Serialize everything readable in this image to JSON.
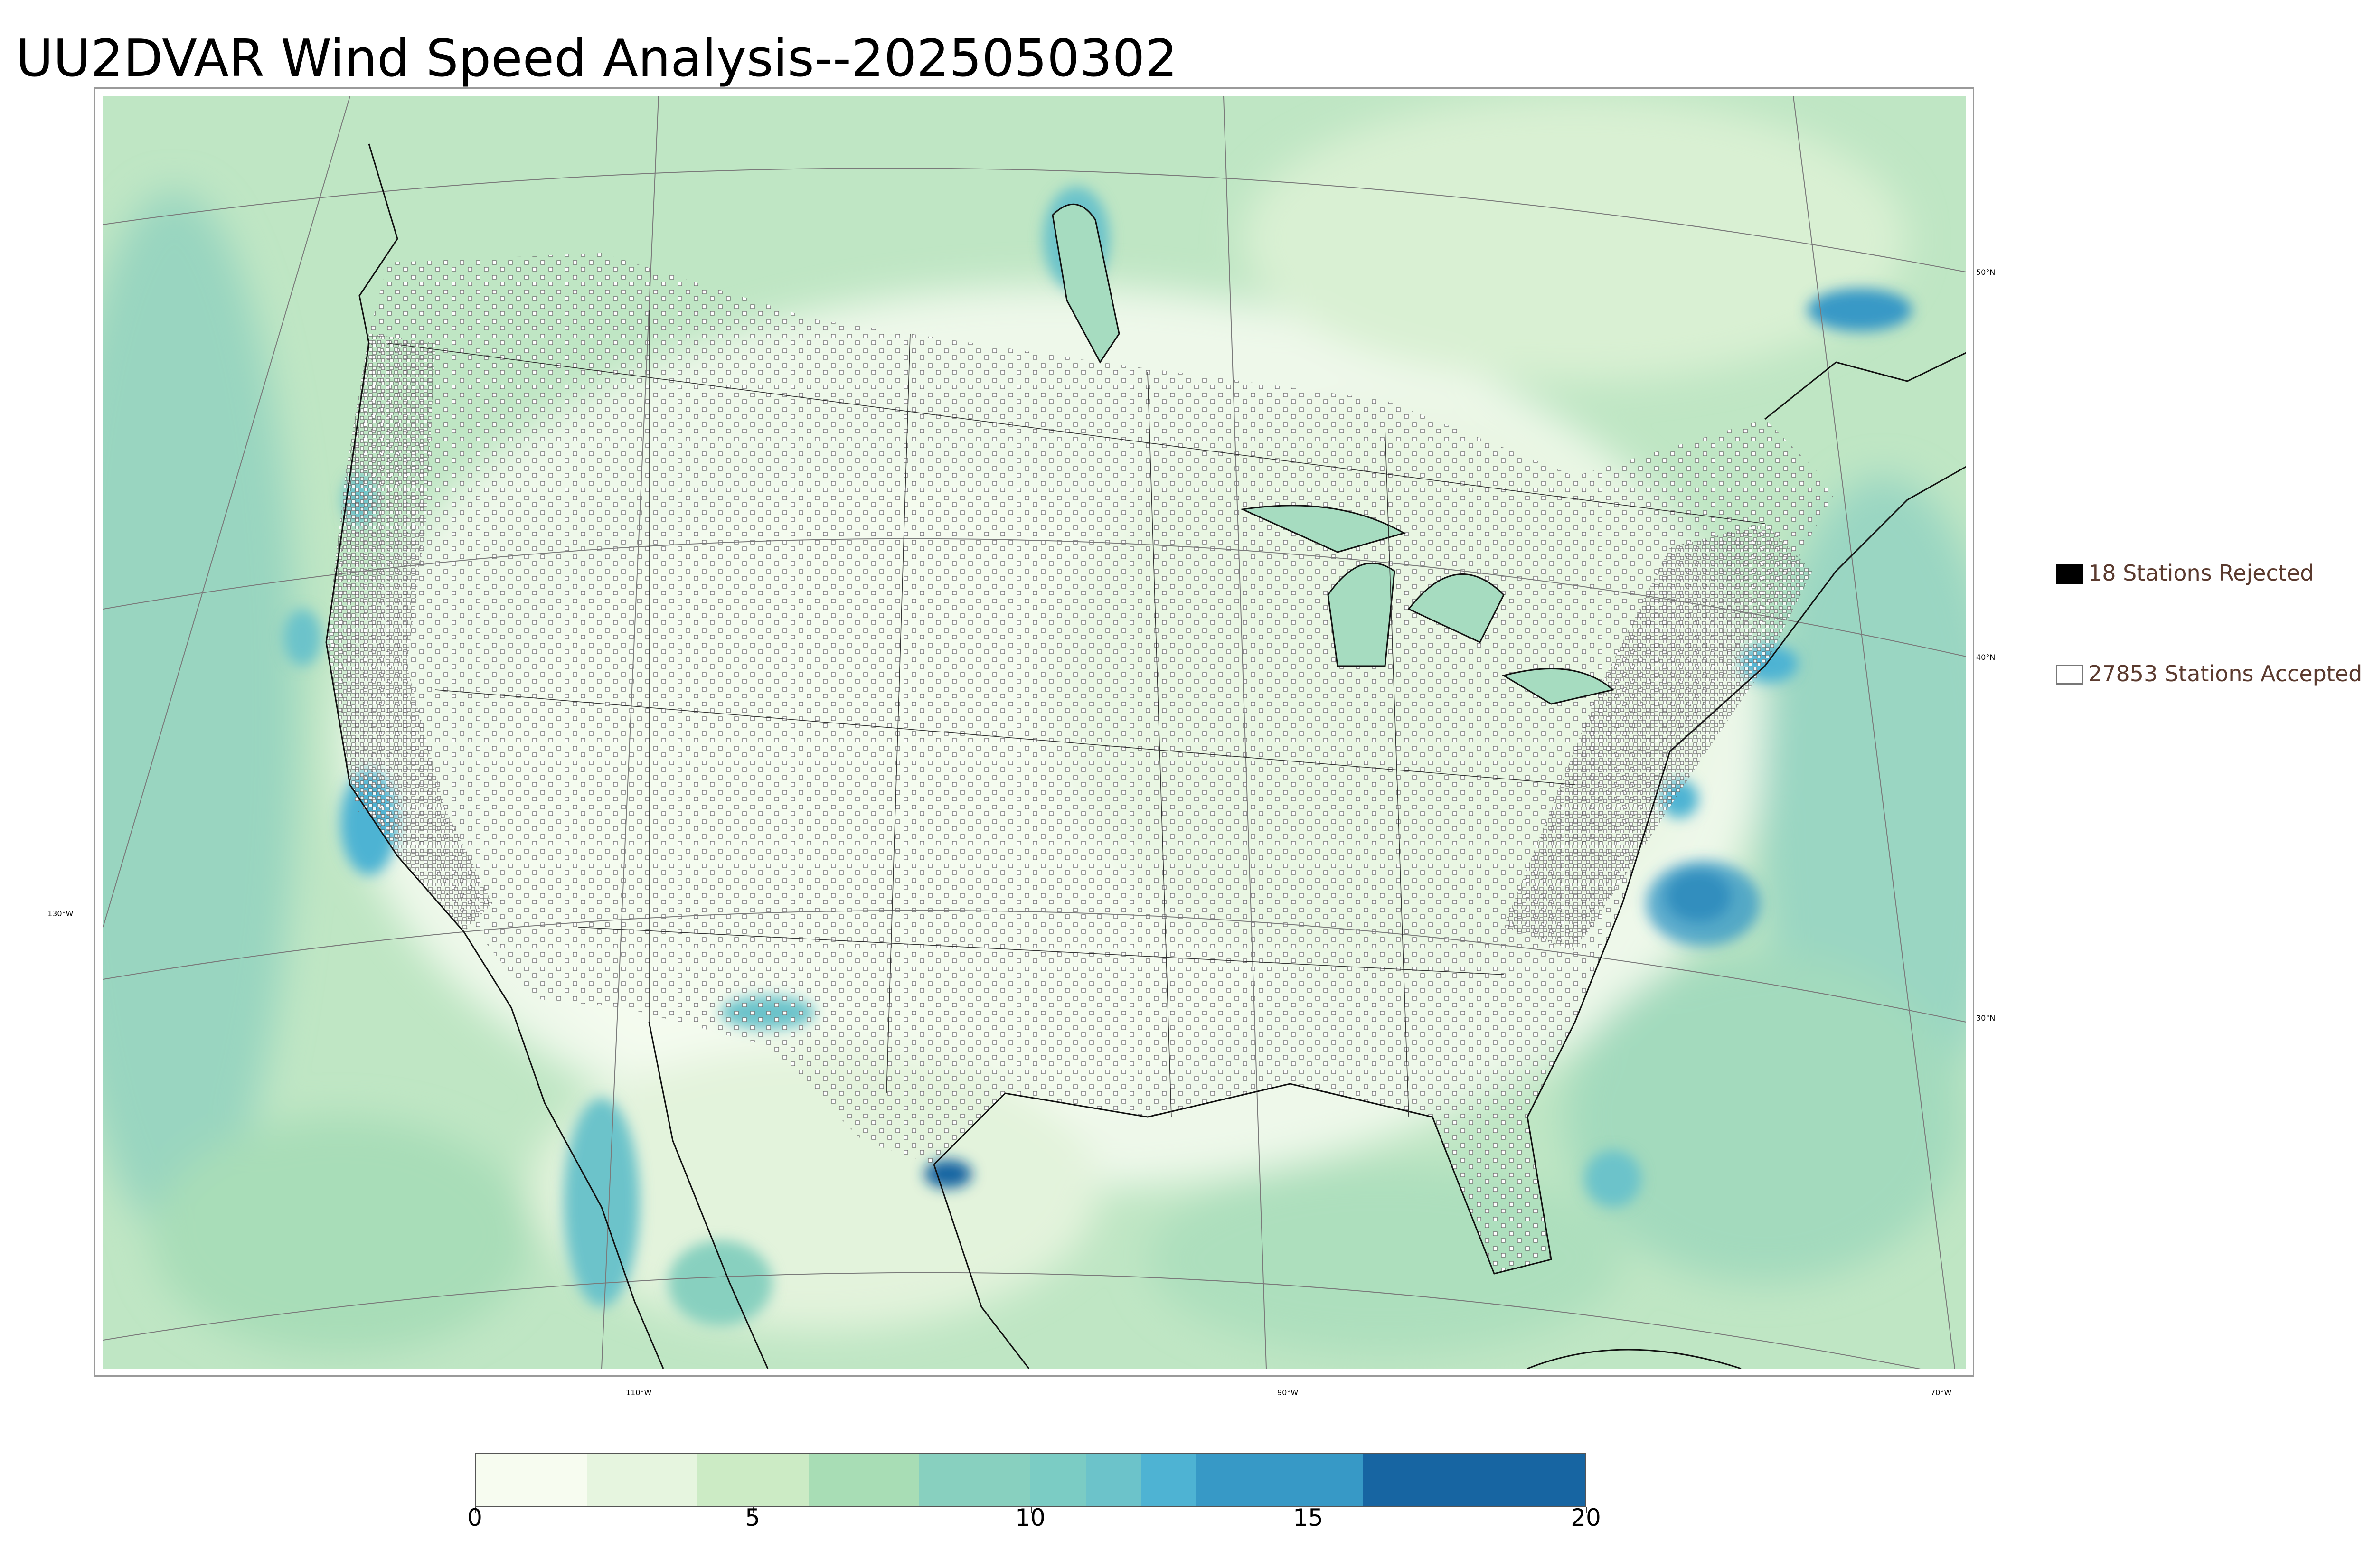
{
  "title": "UU2DVAR Wind Speed Analysis--2025050302",
  "latitude_labels": [
    "50°N",
    "40°N",
    "30°N"
  ],
  "longitude_labels": [
    "130°W",
    "110°W",
    "90°W",
    "70°W"
  ],
  "legend": [
    {
      "text": "18 Stations Rejected",
      "swatch": "filled",
      "color": "#000000"
    },
    {
      "text": "27853 Stations Accepted",
      "swatch": "open",
      "color": "#777777"
    }
  ],
  "colorbar": {
    "min": 0,
    "max": 20,
    "tick_labels": [
      "0",
      "5",
      "10",
      "15",
      "20"
    ],
    "tick_values": [
      0,
      5,
      10,
      15,
      20
    ],
    "levels": [
      {
        "from": 0,
        "to": 2,
        "color": "#f7fcf0"
      },
      {
        "from": 2,
        "to": 4,
        "color": "#e6f5df"
      },
      {
        "from": 4,
        "to": 6,
        "color": "#ccebc5"
      },
      {
        "from": 6,
        "to": 8,
        "color": "#a8ddb5"
      },
      {
        "from": 8,
        "to": 10,
        "color": "#88d0bf"
      },
      {
        "from": 10,
        "to": 11,
        "color": "#7bccc4"
      },
      {
        "from": 11,
        "to": 12,
        "color": "#6cc3ca"
      },
      {
        "from": 12,
        "to": 13,
        "color": "#4eb3d3"
      },
      {
        "from": 13,
        "to": 16,
        "color": "#3799c6"
      },
      {
        "from": 16,
        "to": 20,
        "color": "#1765a2"
      }
    ]
  }
}
